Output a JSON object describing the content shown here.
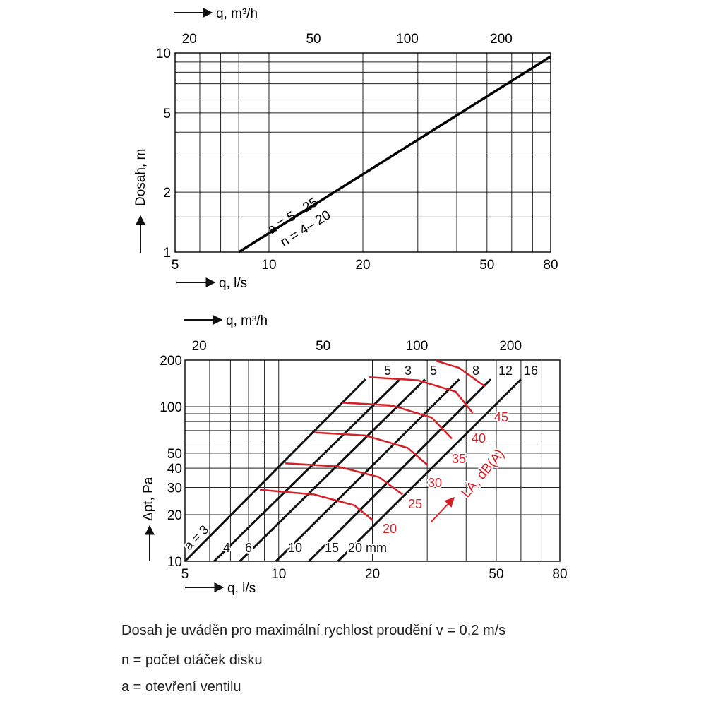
{
  "chart_data": [
    {
      "type": "line",
      "top_axis": {
        "label": "q, m³/h",
        "scale": "log",
        "ticks": [
          "20",
          "50",
          "100",
          "200"
        ]
      },
      "bottom_axis": {
        "label": "q, l/s",
        "scale": "log",
        "range": [
          5,
          80
        ],
        "ticks": [
          "5",
          "10",
          "20",
          "50",
          "80"
        ]
      },
      "left_axis": {
        "label": "Dosah, m",
        "scale": "log",
        "range": [
          1,
          10
        ],
        "ticks": [
          "1",
          "2",
          "5",
          "10"
        ]
      },
      "grid": true,
      "series": [
        {
          "labels": [
            "a = 5– 25",
            "n = 4– 20"
          ],
          "color": "#000000",
          "points": [
            [
              8,
              1
            ],
            [
              80,
              9.6
            ]
          ]
        }
      ]
    },
    {
      "type": "line",
      "top_axis": {
        "label": "q, m³/h",
        "scale": "log",
        "ticks": [
          "20",
          "50",
          "100",
          "200"
        ]
      },
      "bottom_axis": {
        "label": "q, l/s",
        "scale": "log",
        "range": [
          5,
          80
        ],
        "ticks": [
          "5",
          "10",
          "20",
          "50",
          "80"
        ]
      },
      "left_axis": {
        "label": "Δpt, Pa",
        "scale": "log",
        "range": [
          10,
          200
        ],
        "ticks": [
          "10",
          "20",
          "30",
          "40",
          "50",
          "100",
          "200"
        ]
      },
      "grid": true,
      "opening_series": [
        {
          "label": "a = 3",
          "points": [
            [
              5,
              10
            ],
            [
              19,
              150
            ]
          ]
        },
        {
          "label": "4",
          "points": [
            [
              6.2,
              10
            ],
            [
              24.5,
              150
            ]
          ]
        },
        {
          "label": "6",
          "points": [
            [
              7.5,
              10
            ],
            [
              29.5,
              150
            ]
          ]
        },
        {
          "label": "10",
          "points": [
            [
              9.8,
              10
            ],
            [
              38,
              150
            ]
          ]
        },
        {
          "label": "15",
          "points": [
            [
              12.5,
              10
            ],
            [
              48,
              150
            ]
          ]
        },
        {
          "label": "20 mm",
          "points": [
            [
              15.5,
              10
            ],
            [
              60,
              150
            ]
          ]
        }
      ],
      "opening_top_labels": [
        "5",
        "3",
        "5",
        "8",
        "12",
        "16"
      ],
      "sound_series": {
        "label": "LA, dB(A)",
        "color": "#d62027",
        "curves": [
          {
            "label": "20",
            "points": [
              [
                8.7,
                29
              ],
              [
                13,
                27
              ],
              [
                17.5,
                23
              ],
              [
                20,
                18.5
              ]
            ]
          },
          {
            "label": "25",
            "points": [
              [
                10.5,
                43
              ],
              [
                15.5,
                41
              ],
              [
                21,
                35
              ],
              [
                25,
                27
              ]
            ]
          },
          {
            "label": "30",
            "points": [
              [
                13,
                68
              ],
              [
                19,
                65
              ],
              [
                26,
                54
              ],
              [
                30,
                42
              ]
            ]
          },
          {
            "label": "35",
            "points": [
              [
                16,
                106
              ],
              [
                23,
                102
              ],
              [
                31,
                85
              ],
              [
                36,
                62
              ]
            ]
          },
          {
            "label": "40",
            "points": [
              [
                19.5,
                155
              ],
              [
                28,
                148
              ],
              [
                37,
                125
              ],
              [
                42,
                91
              ]
            ]
          },
          {
            "label": "45",
            "points": [
              [
                32,
                198
              ],
              [
                38,
                178
              ],
              [
                46,
                135
              ]
            ]
          }
        ]
      }
    }
  ],
  "notes": [
    "Dosah je uváděn pro maximální rychlost proudění v = 0,2 m/s",
    "n = počet otáček disku",
    "a = otevření ventilu"
  ]
}
